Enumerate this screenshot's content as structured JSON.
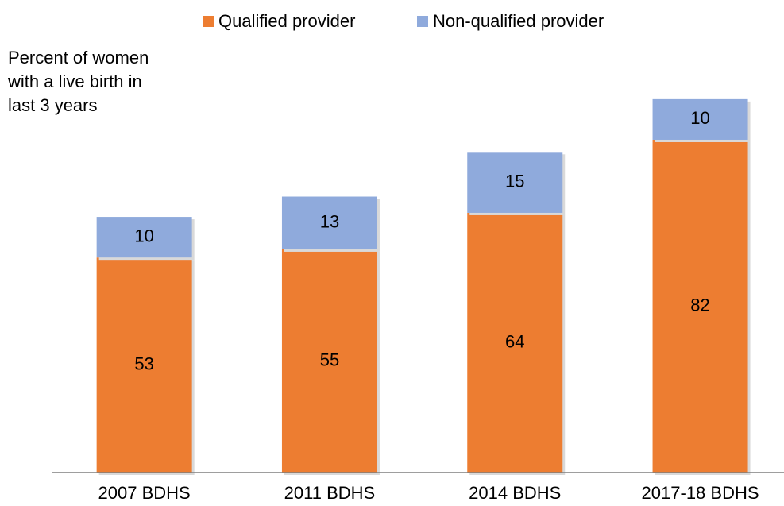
{
  "chart_data": {
    "type": "stacked_bar",
    "title": "Percent of women with a live birth in last 3 years",
    "categories": [
      "2007 BDHS",
      "2011 BDHS",
      "2014 BDHS",
      "2017-18 BDHS"
    ],
    "series": [
      {
        "name": "Qualified provider",
        "color": "#ed7d31",
        "values": [
          53,
          55,
          64,
          82
        ]
      },
      {
        "name": "Non-qualified provider",
        "color": "#8faadc",
        "values": [
          10,
          13,
          15,
          10
        ]
      }
    ],
    "ylim": [
      0,
      100
    ],
    "legend": "top"
  }
}
